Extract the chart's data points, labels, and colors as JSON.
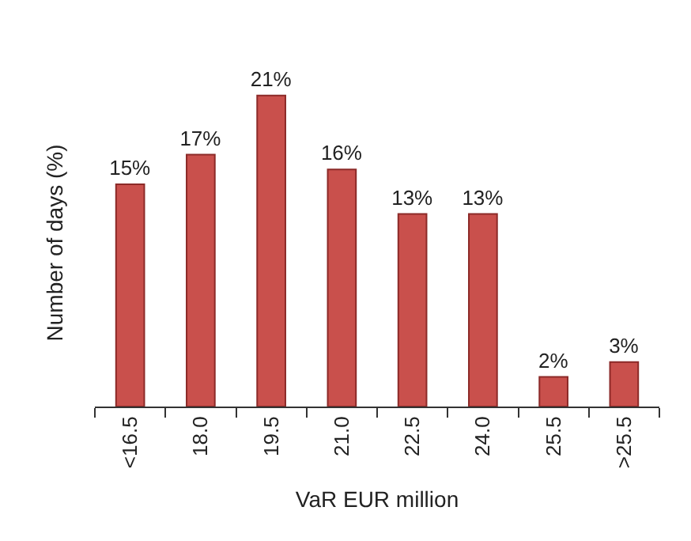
{
  "chart_data": {
    "type": "bar",
    "xlabel": "VaR EUR million",
    "ylabel": "Number of days (%)",
    "categories": [
      "<16.5",
      "18.0",
      "19.5",
      "21.0",
      "22.5",
      "24.0",
      "25.5",
      ">25.5"
    ],
    "values": [
      15,
      17,
      21,
      16,
      13,
      13,
      2,
      3
    ],
    "value_labels": [
      "15%",
      "17%",
      "21%",
      "16%",
      "13%",
      "13%",
      "2%",
      "3%"
    ],
    "color": "#c9504c",
    "tick_labels": "x"
  }
}
